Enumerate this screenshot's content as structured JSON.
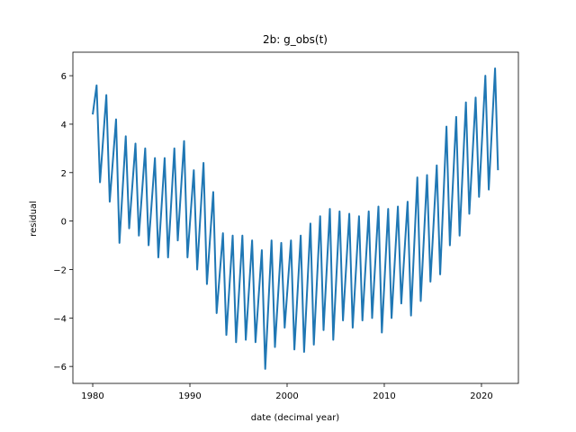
{
  "chart_data": {
    "type": "line",
    "title": "2b: g_obs(t)",
    "x_label": "date (decimal year)",
    "y_label": "residual",
    "color": "#1f77b4",
    "x": [
      1980.0,
      1980.4,
      1980.75,
      1981.4,
      1981.75,
      1982.4,
      1982.75,
      1983.4,
      1983.75,
      1984.4,
      1984.75,
      1985.4,
      1985.75,
      1986.4,
      1986.75,
      1987.4,
      1987.75,
      1988.4,
      1988.75,
      1989.4,
      1989.75,
      1990.4,
      1990.75,
      1991.4,
      1991.75,
      1992.4,
      1992.75,
      1993.4,
      1993.75,
      1994.4,
      1994.75,
      1995.4,
      1995.75,
      1996.4,
      1996.75,
      1997.4,
      1997.75,
      1998.4,
      1998.75,
      1999.4,
      1999.75,
      2000.4,
      2000.75,
      2001.4,
      2001.75,
      2002.4,
      2002.75,
      2003.4,
      2003.75,
      2004.4,
      2004.75,
      2005.4,
      2005.75,
      2006.4,
      2006.75,
      2007.4,
      2007.75,
      2008.4,
      2008.75,
      2009.4,
      2009.75,
      2010.4,
      2010.75,
      2011.4,
      2011.75,
      2012.4,
      2012.75,
      2013.4,
      2013.75,
      2014.4,
      2014.75,
      2015.4,
      2015.75,
      2016.4,
      2016.75,
      2017.4,
      2017.75,
      2018.4,
      2018.75,
      2019.4,
      2019.75,
      2020.4,
      2020.75,
      2021.4,
      2021.7
    ],
    "values": [
      4.4,
      5.6,
      1.6,
      5.2,
      0.8,
      4.2,
      -0.9,
      3.5,
      -0.3,
      3.2,
      -0.6,
      3.0,
      -1.0,
      2.6,
      -1.5,
      2.6,
      -1.5,
      3.0,
      -0.8,
      3.3,
      -1.5,
      2.1,
      -2.0,
      2.4,
      -2.6,
      1.2,
      -3.8,
      -0.5,
      -4.7,
      -0.6,
      -5.0,
      -0.6,
      -4.9,
      -0.8,
      -5.0,
      -1.2,
      -6.1,
      -0.8,
      -5.2,
      -0.9,
      -4.4,
      -0.8,
      -5.3,
      -0.6,
      -5.4,
      -0.1,
      -5.1,
      0.2,
      -4.5,
      0.5,
      -4.9,
      0.4,
      -4.1,
      0.3,
      -4.4,
      0.2,
      -4.1,
      0.4,
      -4.0,
      0.6,
      -4.6,
      0.5,
      -4.0,
      0.6,
      -3.4,
      0.8,
      -3.9,
      1.8,
      -3.3,
      1.9,
      -2.5,
      2.3,
      -2.2,
      3.9,
      -1.0,
      4.3,
      -0.6,
      4.9,
      0.3,
      5.1,
      1.0,
      6.0,
      1.3,
      6.3,
      2.1
    ],
    "xlim": [
      1977.96,
      2023.8
    ],
    "ylim": [
      -6.7,
      6.97
    ],
    "xticks": [
      1980,
      1990,
      2000,
      2010,
      2020
    ],
    "yticks": [
      {
        "value": -6,
        "label": "−6"
      },
      {
        "value": -4,
        "label": "−4"
      },
      {
        "value": -2,
        "label": "−2"
      },
      0,
      2,
      4,
      6
    ]
  }
}
